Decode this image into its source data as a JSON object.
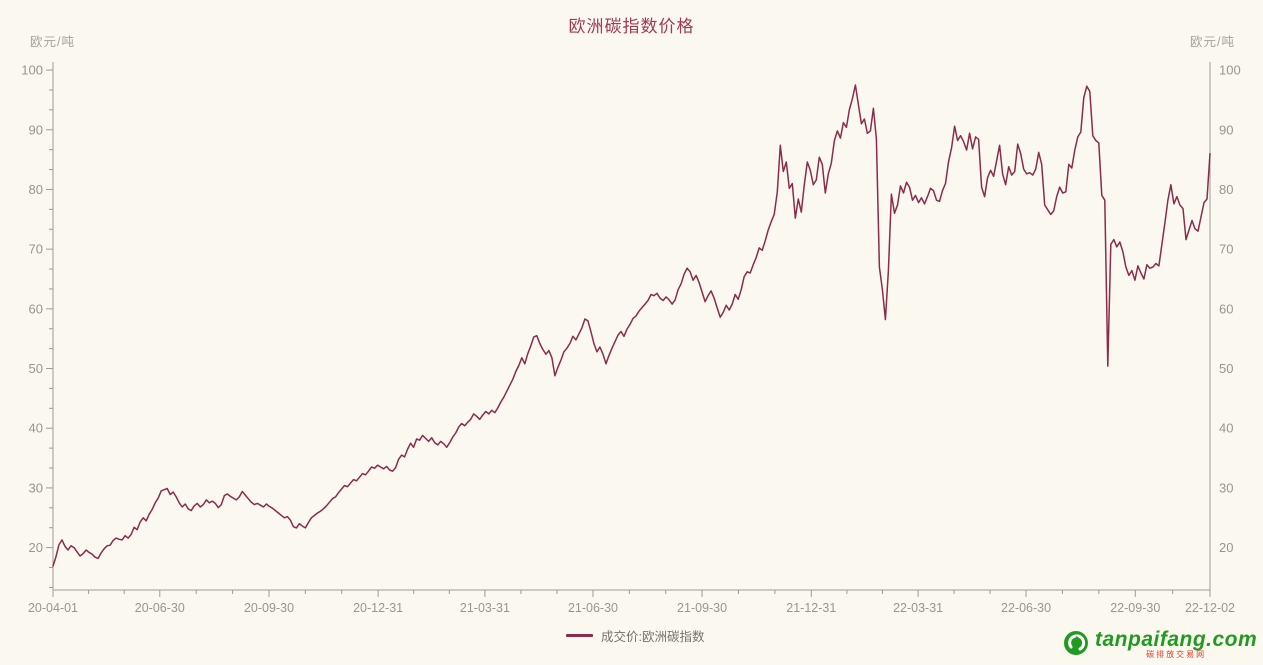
{
  "title": "欧洲碳指数价格",
  "y_axis_left": {
    "unit": "欧元/吨"
  },
  "y_axis_right": {
    "unit": "欧元/吨"
  },
  "legend": {
    "label": "成交价:欧洲碳指数"
  },
  "watermark": {
    "brand": "tanpaifang.com",
    "subtitle": "碳排放交易网",
    "icon": "recycle-leaf-icon"
  },
  "colors": {
    "background": "#FBF8EF",
    "line": "#8A2C4B",
    "title": "#A13A55",
    "axis_line": "#9C9B93",
    "tick_text": "#97968F",
    "unit_text": "#A5A49C",
    "legend_text": "#74726C",
    "logo_green": "#229A22",
    "logo_red": "#E03A2A"
  },
  "chart_data": {
    "type": "line",
    "title": "欧洲碳指数价格",
    "ylabel": "欧元/吨",
    "ylim": [
      12.9,
      101.35
    ],
    "yticks": [
      20,
      30,
      40,
      50,
      60,
      70,
      80,
      90,
      100
    ],
    "grid": false,
    "legend_position": "bottom",
    "x_ticks": [
      {
        "label": "20-04-01",
        "f": 0.0
      },
      {
        "label": "20-06-30",
        "f": 0.0923
      },
      {
        "label": "20-09-30",
        "f": 0.1867
      },
      {
        "label": "20-12-31",
        "f": 0.281
      },
      {
        "label": "21-03-31",
        "f": 0.3733
      },
      {
        "label": "21-06-30",
        "f": 0.4667
      },
      {
        "label": "21-09-30",
        "f": 0.561
      },
      {
        "label": "21-12-31",
        "f": 0.6554
      },
      {
        "label": "22-03-31",
        "f": 0.7477
      },
      {
        "label": "22-06-30",
        "f": 0.841
      },
      {
        "label": "22-09-30",
        "f": 0.9354
      },
      {
        "label": "22-12-02",
        "f": 1.0
      }
    ],
    "series": [
      {
        "name": "成交价:欧洲碳指数",
        "x_start": "20-04-01",
        "x_end": "22-12-02",
        "uniform_x": true,
        "values": [
          16.9,
          18.5,
          20.5,
          21.3,
          20.2,
          19.6,
          20.3,
          20.0,
          19.3,
          18.6,
          19.0,
          19.6,
          19.2,
          18.9,
          18.4,
          18.2,
          19.1,
          19.8,
          20.3,
          20.4,
          21.2,
          21.6,
          21.4,
          21.3,
          22.0,
          21.6,
          22.2,
          23.4,
          23.0,
          24.3,
          25.0,
          24.5,
          25.6,
          26.4,
          27.5,
          28.3,
          29.5,
          29.7,
          29.9,
          28.9,
          29.3,
          28.5,
          27.5,
          26.8,
          27.3,
          26.5,
          26.2,
          27.0,
          27.4,
          26.8,
          27.2,
          28.0,
          27.5,
          27.8,
          27.4,
          26.7,
          27.2,
          28.7,
          29.0,
          28.6,
          28.3,
          28.0,
          28.5,
          29.4,
          28.8,
          28.2,
          27.6,
          27.2,
          27.4,
          27.1,
          26.8,
          27.3,
          26.9,
          26.6,
          26.2,
          25.8,
          25.4,
          25.0,
          25.2,
          24.6,
          23.5,
          23.3,
          24.0,
          23.6,
          23.3,
          24.2,
          25.0,
          25.4,
          25.8,
          26.1,
          26.5,
          27.0,
          27.6,
          28.2,
          28.5,
          29.2,
          29.8,
          30.4,
          30.2,
          30.8,
          31.4,
          31.2,
          31.8,
          32.4,
          32.2,
          32.8,
          33.5,
          33.3,
          33.8,
          33.5,
          33.2,
          33.6,
          33.0,
          32.8,
          33.4,
          34.8,
          35.5,
          35.2,
          36.5,
          37.5,
          36.8,
          38.2,
          38.0,
          38.8,
          38.3,
          37.8,
          38.4,
          37.6,
          37.2,
          37.8,
          37.4,
          36.8,
          37.6,
          38.5,
          39.2,
          40.2,
          40.8,
          40.4,
          41.0,
          41.5,
          42.4,
          42.0,
          41.5,
          42.2,
          42.8,
          42.4,
          43.0,
          42.6,
          43.4,
          44.4,
          45.2,
          46.2,
          47.2,
          48.2,
          49.5,
          50.5,
          51.8,
          50.8,
          52.5,
          53.8,
          55.3,
          55.5,
          54.2,
          53.2,
          52.4,
          53.0,
          51.8,
          48.8,
          50.2,
          51.4,
          52.8,
          53.4,
          54.2,
          55.4,
          54.8,
          55.8,
          56.8,
          58.3,
          58.0,
          56.2,
          54.2,
          52.8,
          53.6,
          52.4,
          50.8,
          52.2,
          53.4,
          54.5,
          55.6,
          56.2,
          55.4,
          56.6,
          57.4,
          58.4,
          58.8,
          59.6,
          60.2,
          60.8,
          61.4,
          62.4,
          62.2,
          62.6,
          61.8,
          61.4,
          62.0,
          61.5,
          60.8,
          61.5,
          63.2,
          64.2,
          65.8,
          66.8,
          66.2,
          64.8,
          65.6,
          64.4,
          62.8,
          61.2,
          62.2,
          63.0,
          61.8,
          60.2,
          58.6,
          59.4,
          60.6,
          59.8,
          60.8,
          62.4,
          61.6,
          63.2,
          65.4,
          66.2,
          66.0,
          67.4,
          68.6,
          70.2,
          69.8,
          71.4,
          73.2,
          74.6,
          75.8,
          79.6,
          87.4,
          83.0,
          84.6,
          80.2,
          81.0,
          75.2,
          78.4,
          76.2,
          80.8,
          84.6,
          83.2,
          80.8,
          81.6,
          85.4,
          84.2,
          79.4,
          82.6,
          84.4,
          88.2,
          89.8,
          88.6,
          91.2,
          90.4,
          93.4,
          95.2,
          97.5,
          94.2,
          91.0,
          91.8,
          89.4,
          89.8,
          93.6,
          88.4,
          67.0,
          63.2,
          58.2,
          66.4,
          79.2,
          76.0,
          77.4,
          80.6,
          79.4,
          81.2,
          80.4,
          78.2,
          79.0,
          77.8,
          78.6,
          77.6,
          78.8,
          80.2,
          79.8,
          78.2,
          78.0,
          79.8,
          81.0,
          84.6,
          87.0,
          90.6,
          88.2,
          89.0,
          88.0,
          86.6,
          89.4,
          86.8,
          88.8,
          88.4,
          80.4,
          78.8,
          82.0,
          83.2,
          82.2,
          84.8,
          87.4,
          82.6,
          80.8,
          83.8,
          82.4,
          83.0,
          87.6,
          86.0,
          83.4,
          82.6,
          82.8,
          82.4,
          83.4,
          86.2,
          84.2,
          77.4,
          76.6,
          75.8,
          76.4,
          78.8,
          80.4,
          79.4,
          79.6,
          84.2,
          83.6,
          86.6,
          88.8,
          89.6,
          95.4,
          97.3,
          96.4,
          89.0,
          88.2,
          87.8,
          79.0,
          78.2,
          50.4,
          70.8,
          71.6,
          70.4,
          71.2,
          69.6,
          67.0,
          65.6,
          66.4,
          64.8,
          67.2,
          66.0,
          65.0,
          67.4,
          66.8,
          67.0,
          67.6,
          67.2,
          70.8,
          74.4,
          78.2,
          80.8,
          77.6,
          78.8,
          77.4,
          76.8,
          71.6,
          73.2,
          74.8,
          73.4,
          73.0,
          75.4,
          77.8,
          78.4,
          86.0
        ]
      }
    ]
  }
}
